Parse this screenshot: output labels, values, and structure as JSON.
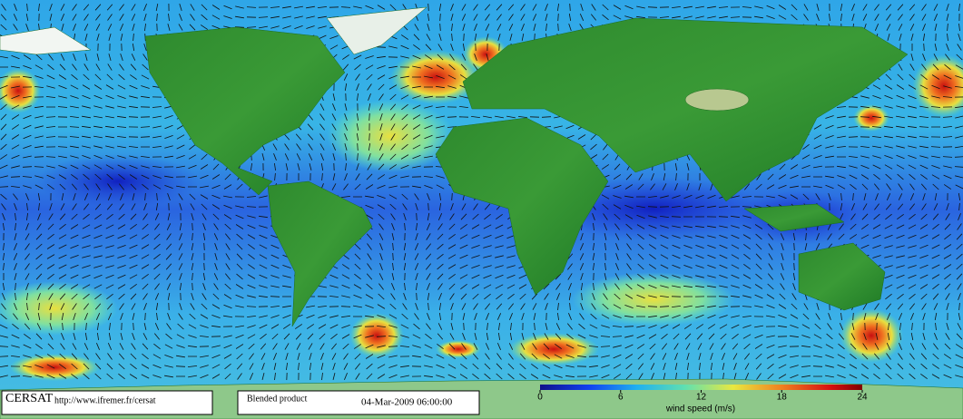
{
  "footer": {
    "logo": "CERSAT",
    "url": "http://www.ifremer.fr/cersat",
    "product": "Blended product",
    "timestamp": "04-Mar-2009 06:00:00"
  },
  "colorbar": {
    "label": "wind speed (m/s)",
    "lim": [
      0,
      24
    ],
    "ticks": [
      0,
      6,
      12,
      18,
      24
    ]
  }
}
